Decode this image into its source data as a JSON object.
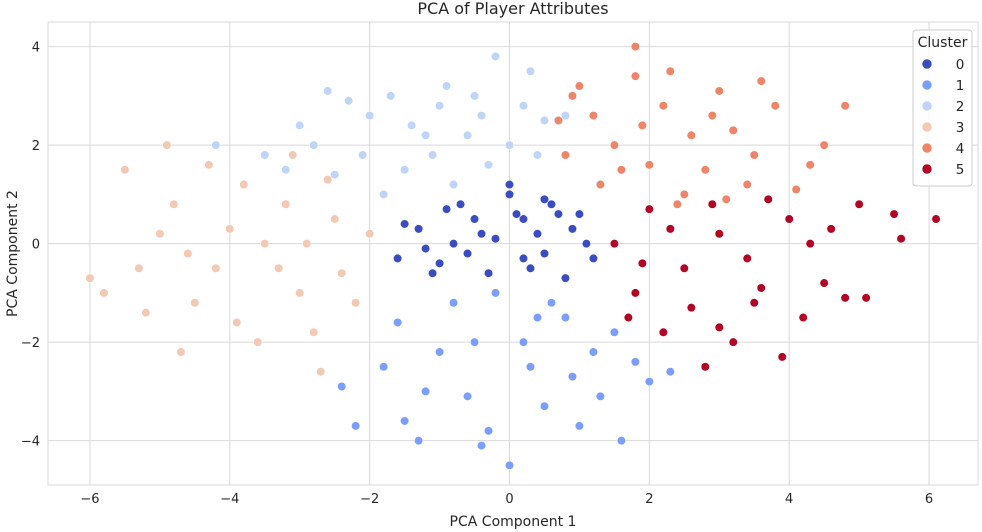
{
  "chart_data": {
    "type": "scatter",
    "title": "PCA of Player Attributes",
    "xlabel": "PCA Component 1",
    "ylabel": "PCA Component 2",
    "xlim": [
      -6.6,
      6.7
    ],
    "ylim": [
      -4.9,
      4.5
    ],
    "xticks": [
      -6,
      -4,
      -2,
      0,
      2,
      4,
      6
    ],
    "yticks": [
      -4,
      -2,
      0,
      2,
      4
    ],
    "grid": true,
    "legend": {
      "title": "Cluster",
      "placement": "top-right"
    },
    "series": [
      {
        "name": "0",
        "color": "#3b4cc0",
        "points": [
          [
            -0.4,
            0.2
          ],
          [
            0.2,
            0.5
          ],
          [
            -1.2,
            -0.1
          ],
          [
            0.5,
            -0.2
          ],
          [
            -0.7,
            0.8
          ],
          [
            0.0,
            1.0
          ],
          [
            0.9,
            0.3
          ],
          [
            -1.5,
            0.4
          ],
          [
            -0.3,
            -0.6
          ],
          [
            0.6,
            0.8
          ],
          [
            -1.0,
            -0.4
          ],
          [
            0.3,
            -0.5
          ],
          [
            1.1,
            0.0
          ],
          [
            -0.2,
            0.1
          ],
          [
            -1.6,
            -0.3
          ],
          [
            0.8,
            -0.7
          ],
          [
            -0.5,
            0.5
          ],
          [
            0.1,
            0.6
          ],
          [
            -0.9,
            0.7
          ],
          [
            0.4,
            0.2
          ],
          [
            -1.3,
            0.3
          ],
          [
            0.7,
            0.6
          ],
          [
            -0.6,
            -0.2
          ],
          [
            0.2,
            -0.3
          ],
          [
            1.0,
            0.6
          ],
          [
            -1.1,
            -0.6
          ],
          [
            0.0,
            1.2
          ],
          [
            -0.8,
            0.0
          ],
          [
            0.5,
            0.9
          ],
          [
            1.2,
            -0.3
          ]
        ]
      },
      {
        "name": "1",
        "color": "#7b9ff9",
        "points": [
          [
            -0.5,
            -2.0
          ],
          [
            0.3,
            -2.5
          ],
          [
            -1.2,
            -3.0
          ],
          [
            0.8,
            -1.5
          ],
          [
            -0.3,
            -3.8
          ],
          [
            1.2,
            -2.2
          ],
          [
            -1.8,
            -2.5
          ],
          [
            0.0,
            -4.5
          ],
          [
            1.5,
            -1.8
          ],
          [
            -0.8,
            -1.2
          ],
          [
            2.0,
            -2.8
          ],
          [
            -1.5,
            -3.6
          ],
          [
            0.5,
            -3.3
          ],
          [
            -2.2,
            -3.7
          ],
          [
            1.0,
            -3.7
          ],
          [
            -0.2,
            -1.0
          ],
          [
            0.6,
            -1.2
          ],
          [
            -1.0,
            -2.2
          ],
          [
            1.8,
            -2.4
          ],
          [
            -0.6,
            -3.1
          ],
          [
            2.3,
            -2.6
          ],
          [
            -1.6,
            -1.6
          ],
          [
            0.2,
            -2.0
          ],
          [
            1.3,
            -3.1
          ],
          [
            -0.4,
            -4.1
          ],
          [
            0.9,
            -2.7
          ],
          [
            -1.3,
            -4.0
          ],
          [
            1.6,
            -4.0
          ],
          [
            -2.4,
            -2.9
          ],
          [
            0.4,
            -1.5
          ]
        ]
      },
      {
        "name": "2",
        "color": "#c0d4f5",
        "points": [
          [
            -1.2,
            2.2
          ],
          [
            -0.5,
            3.0
          ],
          [
            -2.0,
            2.6
          ],
          [
            0.0,
            2.0
          ],
          [
            -1.5,
            1.5
          ],
          [
            -2.8,
            2.0
          ],
          [
            -0.8,
            1.2
          ],
          [
            0.3,
            3.5
          ],
          [
            -1.0,
            2.8
          ],
          [
            -2.3,
            2.9
          ],
          [
            -0.2,
            3.8
          ],
          [
            -3.5,
            1.8
          ],
          [
            0.5,
            2.5
          ],
          [
            -1.8,
            1.0
          ],
          [
            -0.3,
            1.6
          ],
          [
            -2.5,
            1.4
          ],
          [
            -0.9,
            3.2
          ],
          [
            -1.4,
            2.4
          ],
          [
            0.2,
            2.8
          ],
          [
            -3.0,
            2.4
          ],
          [
            -0.6,
            2.2
          ],
          [
            -2.1,
            1.8
          ],
          [
            -1.1,
            1.8
          ],
          [
            0.4,
            1.8
          ],
          [
            -4.2,
            2.0
          ],
          [
            -2.6,
            3.1
          ],
          [
            -0.4,
            2.6
          ],
          [
            0.8,
            2.6
          ],
          [
            -1.7,
            3.0
          ],
          [
            -3.2,
            1.5
          ]
        ]
      },
      {
        "name": "3",
        "color": "#f2c9b4",
        "points": [
          [
            -3.5,
            0.0
          ],
          [
            -2.5,
            0.5
          ],
          [
            -4.2,
            -0.5
          ],
          [
            -3.0,
            -1.0
          ],
          [
            -4.8,
            0.8
          ],
          [
            -2.0,
            0.2
          ],
          [
            -3.8,
            1.2
          ],
          [
            -5.2,
            -1.4
          ],
          [
            -2.8,
            -1.8
          ],
          [
            -4.5,
            -1.2
          ],
          [
            -3.2,
            0.8
          ],
          [
            -6.0,
            -0.7
          ],
          [
            -5.5,
            1.5
          ],
          [
            -2.2,
            -1.2
          ],
          [
            -4.0,
            0.3
          ],
          [
            -3.6,
            -2.0
          ],
          [
            -5.0,
            0.2
          ],
          [
            -2.6,
            1.3
          ],
          [
            -4.6,
            -0.2
          ],
          [
            -3.3,
            -0.5
          ],
          [
            -5.8,
            -1.0
          ],
          [
            -4.9,
            2.0
          ],
          [
            -2.4,
            -0.6
          ],
          [
            -3.9,
            -1.6
          ],
          [
            -2.7,
            -2.6
          ],
          [
            -4.3,
            1.6
          ],
          [
            -5.3,
            -0.5
          ],
          [
            -3.1,
            1.8
          ],
          [
            -2.9,
            0.0
          ],
          [
            -4.7,
            -2.2
          ]
        ]
      },
      {
        "name": "4",
        "color": "#ee8468",
        "points": [
          [
            1.5,
            2.0
          ],
          [
            2.2,
            2.8
          ],
          [
            1.0,
            3.2
          ],
          [
            2.8,
            1.5
          ],
          [
            3.2,
            2.3
          ],
          [
            0.8,
            1.8
          ],
          [
            1.8,
            3.4
          ],
          [
            2.5,
            1.0
          ],
          [
            3.5,
            1.8
          ],
          [
            4.5,
            2.0
          ],
          [
            1.3,
            1.2
          ],
          [
            3.0,
            3.1
          ],
          [
            4.1,
            1.1
          ],
          [
            1.8,
            4.0
          ],
          [
            0.7,
            2.5
          ],
          [
            2.0,
            1.6
          ],
          [
            2.6,
            2.2
          ],
          [
            3.8,
            2.8
          ],
          [
            1.2,
            2.6
          ],
          [
            4.8,
            2.8
          ],
          [
            3.4,
            1.2
          ],
          [
            2.3,
            3.5
          ],
          [
            1.6,
            1.5
          ],
          [
            2.9,
            2.6
          ],
          [
            4.3,
            1.6
          ],
          [
            1.9,
            2.4
          ],
          [
            3.1,
            0.9
          ],
          [
            0.9,
            3.0
          ],
          [
            2.4,
            0.8
          ],
          [
            3.6,
            3.3
          ]
        ]
      },
      {
        "name": "5",
        "color": "#b40426",
        "points": [
          [
            2.5,
            -0.5
          ],
          [
            3.0,
            0.2
          ],
          [
            1.8,
            -1.0
          ],
          [
            3.5,
            -1.2
          ],
          [
            4.0,
            0.5
          ],
          [
            2.2,
            -1.8
          ],
          [
            4.5,
            -0.8
          ],
          [
            1.5,
            0.0
          ],
          [
            3.2,
            -2.0
          ],
          [
            5.0,
            0.8
          ],
          [
            2.8,
            -2.5
          ],
          [
            4.2,
            -1.5
          ],
          [
            5.5,
            0.6
          ],
          [
            6.1,
            0.5
          ],
          [
            2.0,
            0.7
          ],
          [
            3.7,
            0.9
          ],
          [
            4.8,
            -1.1
          ],
          [
            5.1,
            -1.1
          ],
          [
            2.6,
            -1.3
          ],
          [
            3.4,
            -0.3
          ],
          [
            1.7,
            -1.5
          ],
          [
            4.3,
            0.0
          ],
          [
            3.9,
            -2.3
          ],
          [
            2.3,
            0.3
          ],
          [
            5.6,
            0.1
          ],
          [
            3.0,
            -1.7
          ],
          [
            4.6,
            0.3
          ],
          [
            1.9,
            -0.4
          ],
          [
            3.6,
            -0.9
          ],
          [
            2.9,
            0.8
          ]
        ]
      }
    ]
  }
}
